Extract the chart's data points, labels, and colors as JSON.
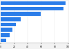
{
  "values": [
    96,
    93,
    59,
    30,
    22,
    17,
    13,
    8
  ],
  "bar_color": "#2b7de9",
  "background_color": "#f2f2f2",
  "plot_bg_color": "#ffffff",
  "xlim": [
    0,
    100
  ],
  "bar_height": 0.72,
  "xticks": [
    0,
    20,
    40,
    60,
    80,
    100
  ],
  "tick_fontsize": 2.2,
  "figwidth": 1.0,
  "figheight": 0.71,
  "dpi": 100
}
